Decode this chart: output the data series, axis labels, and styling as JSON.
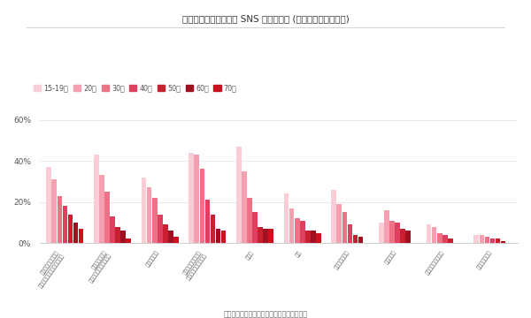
{
  "title": "商材を知るきっかけが SNS である割合 (性別：女性、商材別)",
  "note": "（注）全アンケート対象者を分母とした割合",
  "categories": [
    "日用品（キッチン・\n洗面用品、シャンプーなど）",
    "美容（コスメ・\nメイク・美容整形など）",
    "食料品、飲料",
    "衣類・ファッション\n（アクセサリー含む）",
    "化粧品",
    "旅行",
    "ゲーム・アプリ",
    "趣味関連品",
    "住居（購入・賃貸）",
    "自動車・バイク"
  ],
  "age_groups": [
    "15-19歳",
    "20代",
    "30代",
    "40代",
    "50代",
    "60代",
    "70代"
  ],
  "data": [
    [
      37,
      31,
      23,
      18,
      14,
      10,
      7
    ],
    [
      43,
      33,
      25,
      13,
      8,
      6,
      2
    ],
    [
      32,
      27,
      22,
      14,
      9,
      6,
      3
    ],
    [
      44,
      43,
      36,
      21,
      14,
      7,
      6
    ],
    [
      47,
      35,
      22,
      15,
      8,
      7,
      7
    ],
    [
      24,
      17,
      12,
      11,
      6,
      6,
      5
    ],
    [
      26,
      19,
      15,
      9,
      4,
      3,
      0
    ],
    [
      10,
      16,
      11,
      10,
      7,
      6,
      0
    ],
    [
      9,
      8,
      5,
      4,
      2,
      0,
      0
    ],
    [
      4,
      4,
      3,
      2,
      2,
      1,
      0
    ]
  ],
  "ylim": [
    0,
    60
  ],
  "yticks": [
    0,
    20,
    40,
    60
  ],
  "ytick_labels": [
    "0%",
    "20%",
    "40%",
    "60%"
  ],
  "background_color": "#ffffff",
  "bar_colors": [
    "#f9cdd5",
    "#f4a0b0",
    "#ee7285",
    "#e04060",
    "#c82030",
    "#a01020",
    "#cc1020"
  ]
}
